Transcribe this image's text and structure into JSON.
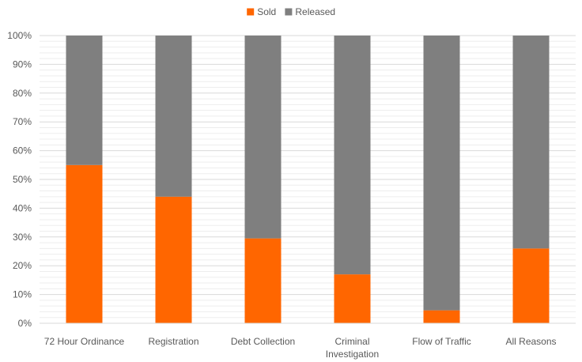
{
  "chart_data": {
    "type": "bar",
    "stacked": true,
    "percent": true,
    "categories": [
      [
        "72 Hour Ordinance"
      ],
      [
        "Registration"
      ],
      [
        "Debt Collection"
      ],
      [
        "Criminal",
        "Investigation"
      ],
      [
        "Flow of Traffic"
      ],
      [
        "All Reasons"
      ]
    ],
    "series": [
      {
        "name": "Sold",
        "color": "#FF6600",
        "values": [
          55,
          44,
          29.5,
          17,
          4.5,
          26
        ]
      },
      {
        "name": "Released",
        "color": "#7F7F7F",
        "values": [
          45,
          56,
          70.5,
          83,
          95.5,
          74
        ]
      }
    ],
    "ylim": [
      0,
      100
    ],
    "yticks": [
      "0%",
      "10%",
      "20%",
      "30%",
      "40%",
      "50%",
      "60%",
      "70%",
      "80%",
      "90%",
      "100%"
    ],
    "legend": "top-center",
    "grid": true
  }
}
